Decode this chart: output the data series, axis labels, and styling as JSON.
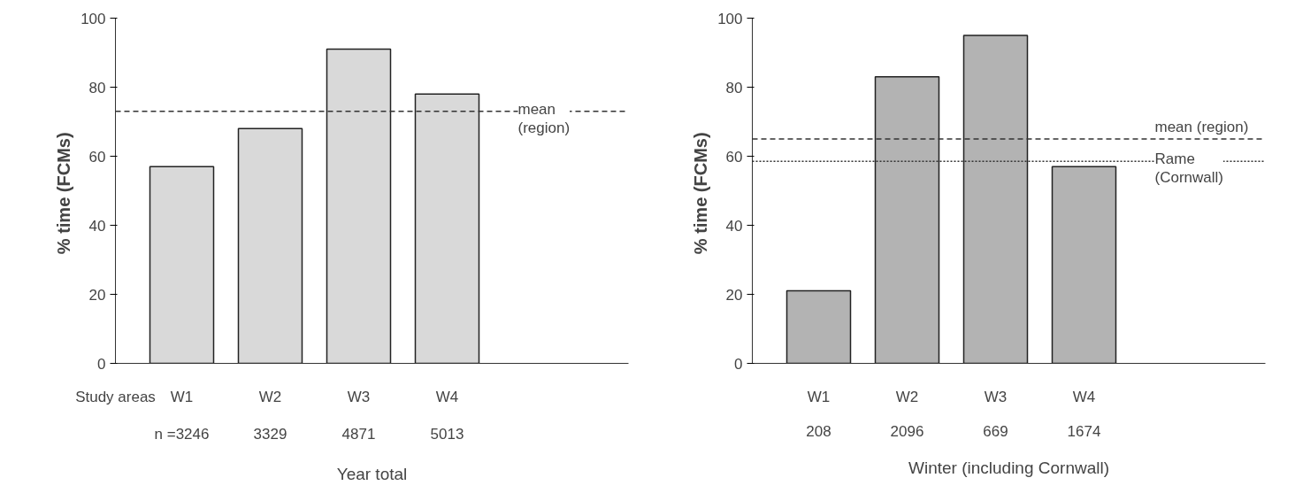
{
  "chart_data": [
    {
      "type": "bar",
      "xlabel": "Year total",
      "ylabel": "% time  (FCMs)",
      "categories": [
        "W1",
        "W2",
        "W3",
        "W4"
      ],
      "values": [
        57,
        68,
        91,
        78
      ],
      "color": "#d9d9d9",
      "ylim": [
        0,
        100
      ],
      "yticks": [
        0,
        20,
        40,
        60,
        80,
        100
      ],
      "grid": false,
      "ref_lines": [
        {
          "axis": "y",
          "value": 73,
          "label": "mean (region)",
          "line_style": "dashed"
        }
      ],
      "annotations": [
        "Study areas",
        "n =3246",
        "3329",
        "4871",
        "5013"
      ]
    },
    {
      "type": "bar",
      "xlabel": "Winter (including Cornwall)",
      "ylabel": "% time  (FCMs)",
      "categories": [
        "W1",
        "W2",
        "W3",
        "W4"
      ],
      "values": [
        21,
        83,
        95,
        57
      ],
      "color": "#b3b3b3",
      "ylim": [
        0,
        100
      ],
      "yticks": [
        0,
        20,
        40,
        60,
        80,
        100
      ],
      "grid": false,
      "ref_lines": [
        {
          "axis": "y",
          "value": 65,
          "label": "mean (region)",
          "line_style": "dashed"
        },
        {
          "axis": "y",
          "value": 58.5,
          "label": "Rame (Cornwall)",
          "line_style": "dotted"
        }
      ],
      "annotations": [
        "208",
        "2096",
        "669",
        "1674"
      ]
    }
  ]
}
